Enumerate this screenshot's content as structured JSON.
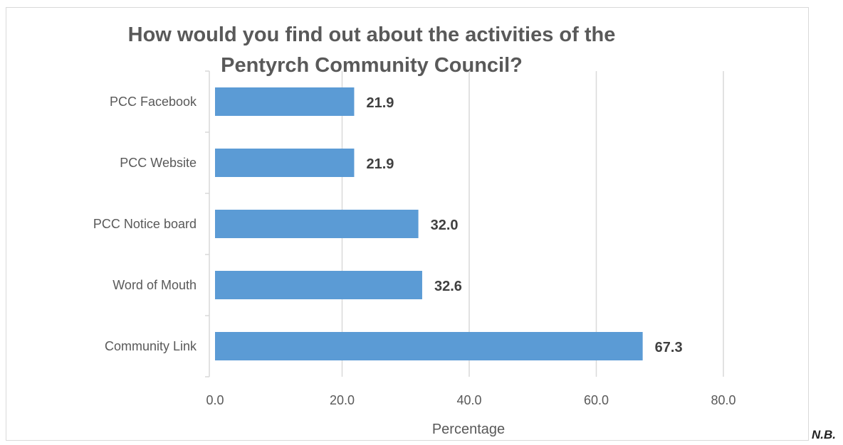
{
  "note": "N.B.",
  "chart_data": {
    "type": "bar",
    "orientation": "horizontal",
    "title": "How would you find out about the activities of the Pentyrch Community Council?",
    "title_lines": [
      "How would you find out about the activities of the",
      "Pentyrch Community Council?"
    ],
    "xlabel": "Percentage",
    "ylabel": "",
    "categories": [
      "PCC Facebook",
      "PCC Website",
      "PCC Notice board",
      "Word of Mouth",
      "Community Link"
    ],
    "values": [
      21.9,
      21.9,
      32.0,
      32.6,
      67.3
    ],
    "data_labels": [
      "21.9",
      "21.9",
      "32.0",
      "32.6",
      "67.3"
    ],
    "xlim": [
      0,
      80
    ],
    "xticks": [
      "0.0",
      "20.0",
      "40.0",
      "60.0",
      "80.0"
    ],
    "grid": "vertical",
    "legend": "none",
    "colors": {
      "bar": "#5b9bd5",
      "grid": "#d9d9d9",
      "axis_text": "#595959",
      "label_text": "#404040"
    }
  }
}
